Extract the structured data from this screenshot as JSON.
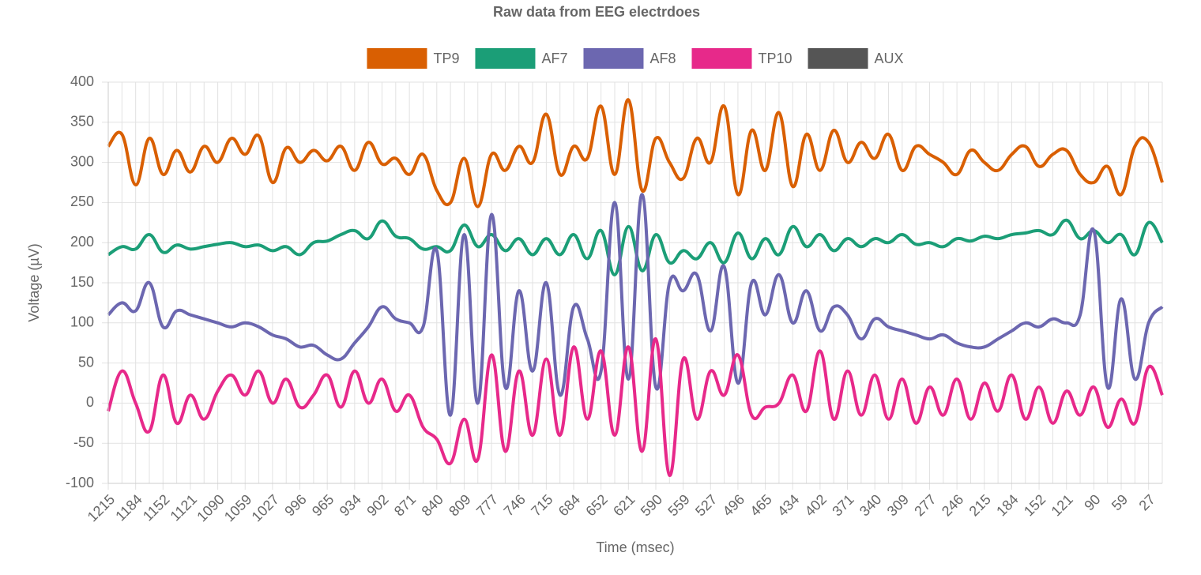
{
  "chart_data": {
    "type": "line",
    "title": "Raw data from EEG electrdoes",
    "x_label": "Time (msec)",
    "y_label": "Voltage (µV)",
    "categories": [
      "1215",
      null,
      "1184",
      null,
      "1152",
      null,
      "1121",
      null,
      "1090",
      null,
      "1059",
      null,
      "1027",
      null,
      "996",
      null,
      "965",
      null,
      "934",
      null,
      "902",
      null,
      "871",
      null,
      "840",
      null,
      "809",
      null,
      "777",
      null,
      "746",
      null,
      "715",
      null,
      "684",
      null,
      "652",
      null,
      "621",
      null,
      "590",
      null,
      "559",
      null,
      "527",
      null,
      "496",
      null,
      "465",
      null,
      "434",
      null,
      "402",
      null,
      "371",
      null,
      "340",
      null,
      "309",
      null,
      "277",
      null,
      "246",
      null,
      "215",
      null,
      "184",
      null,
      "152",
      null,
      "121",
      null,
      "90",
      null,
      "59",
      null,
      "27",
      null
    ],
    "ylim": [
      -100,
      400
    ],
    "yticks": [
      -100,
      -50,
      0,
      50,
      100,
      150,
      200,
      250,
      300,
      350,
      400
    ],
    "grid": true,
    "legend": "top",
    "series": [
      {
        "name": "TP9",
        "color": "#d95f02",
        "values": [
          320,
          335,
          272,
          330,
          285,
          315,
          288,
          320,
          300,
          330,
          310,
          333,
          275,
          318,
          300,
          315,
          302,
          320,
          290,
          325,
          298,
          305,
          285,
          310,
          265,
          250,
          305,
          245,
          310,
          290,
          320,
          300,
          360,
          285,
          320,
          305,
          370,
          285,
          378,
          265,
          330,
          300,
          280,
          330,
          300,
          370,
          260,
          340,
          290,
          362,
          270,
          335,
          290,
          340,
          300,
          325,
          305,
          335,
          290,
          320,
          310,
          300,
          285,
          315,
          300,
          290,
          310,
          320,
          295,
          310,
          315,
          285,
          275,
          295,
          260,
          320,
          325,
          275
        ]
      },
      {
        "name": "AF7",
        "color": "#1b9e77",
        "values": [
          185,
          195,
          192,
          210,
          188,
          197,
          192,
          195,
          198,
          200,
          195,
          197,
          190,
          195,
          185,
          200,
          202,
          210,
          215,
          205,
          227,
          208,
          205,
          192,
          195,
          190,
          222,
          195,
          210,
          190,
          205,
          185,
          205,
          185,
          210,
          180,
          215,
          160,
          220,
          165,
          210,
          175,
          190,
          180,
          200,
          175,
          212,
          180,
          205,
          185,
          220,
          195,
          210,
          190,
          205,
          195,
          205,
          200,
          210,
          198,
          200,
          195,
          205,
          202,
          208,
          205,
          210,
          212,
          215,
          210,
          228,
          205,
          215,
          200,
          210,
          185,
          225,
          200
        ]
      },
      {
        "name": "AF8",
        "color": "#6c67b0",
        "values": [
          110,
          125,
          115,
          150,
          95,
          115,
          110,
          105,
          100,
          95,
          100,
          95,
          85,
          80,
          70,
          72,
          60,
          55,
          75,
          95,
          120,
          105,
          100,
          95,
          190,
          -15,
          210,
          0,
          235,
          20,
          140,
          40,
          150,
          10,
          120,
          80,
          40,
          250,
          30,
          260,
          20,
          150,
          140,
          160,
          90,
          170,
          25,
          150,
          110,
          160,
          100,
          140,
          90,
          120,
          110,
          80,
          105,
          95,
          90,
          85,
          80,
          85,
          75,
          70,
          70,
          80,
          90,
          100,
          95,
          105,
          100,
          110,
          215,
          20,
          130,
          30,
          100,
          120
        ]
      },
      {
        "name": "TP10",
        "color": "#e7298a",
        "values": [
          -10,
          40,
          0,
          -35,
          35,
          -25,
          10,
          -20,
          15,
          35,
          10,
          40,
          0,
          30,
          -5,
          10,
          35,
          -5,
          40,
          0,
          30,
          -10,
          10,
          -30,
          -45,
          -75,
          -20,
          -70,
          60,
          -60,
          40,
          -40,
          55,
          -40,
          70,
          -20,
          65,
          -40,
          70,
          -60,
          80,
          -90,
          55,
          -20,
          40,
          10,
          60,
          -15,
          -5,
          0,
          35,
          -10,
          65,
          -20,
          40,
          -15,
          35,
          -20,
          30,
          -25,
          20,
          -15,
          30,
          -20,
          25,
          -10,
          35,
          -20,
          20,
          -25,
          15,
          -15,
          20,
          -30,
          5,
          -25,
          45,
          10
        ]
      },
      {
        "name": "AUX",
        "color": "#555555",
        "values": [
          null,
          null,
          null,
          null,
          null,
          null,
          null,
          null,
          null,
          null,
          null,
          null,
          null,
          null,
          null,
          null,
          null,
          null,
          null,
          null,
          null,
          null,
          null,
          null,
          null,
          null,
          null,
          null,
          null,
          null,
          null,
          null,
          null,
          null,
          null,
          null,
          null,
          null,
          null,
          null,
          null,
          null,
          null,
          null,
          null,
          null,
          null,
          null,
          null,
          null,
          null,
          null,
          null,
          null,
          null,
          null,
          null,
          null,
          null,
          null,
          null,
          null,
          null,
          null,
          null,
          null,
          null,
          null,
          null,
          null,
          null,
          null,
          null,
          null,
          null,
          null,
          null,
          null
        ]
      }
    ]
  }
}
